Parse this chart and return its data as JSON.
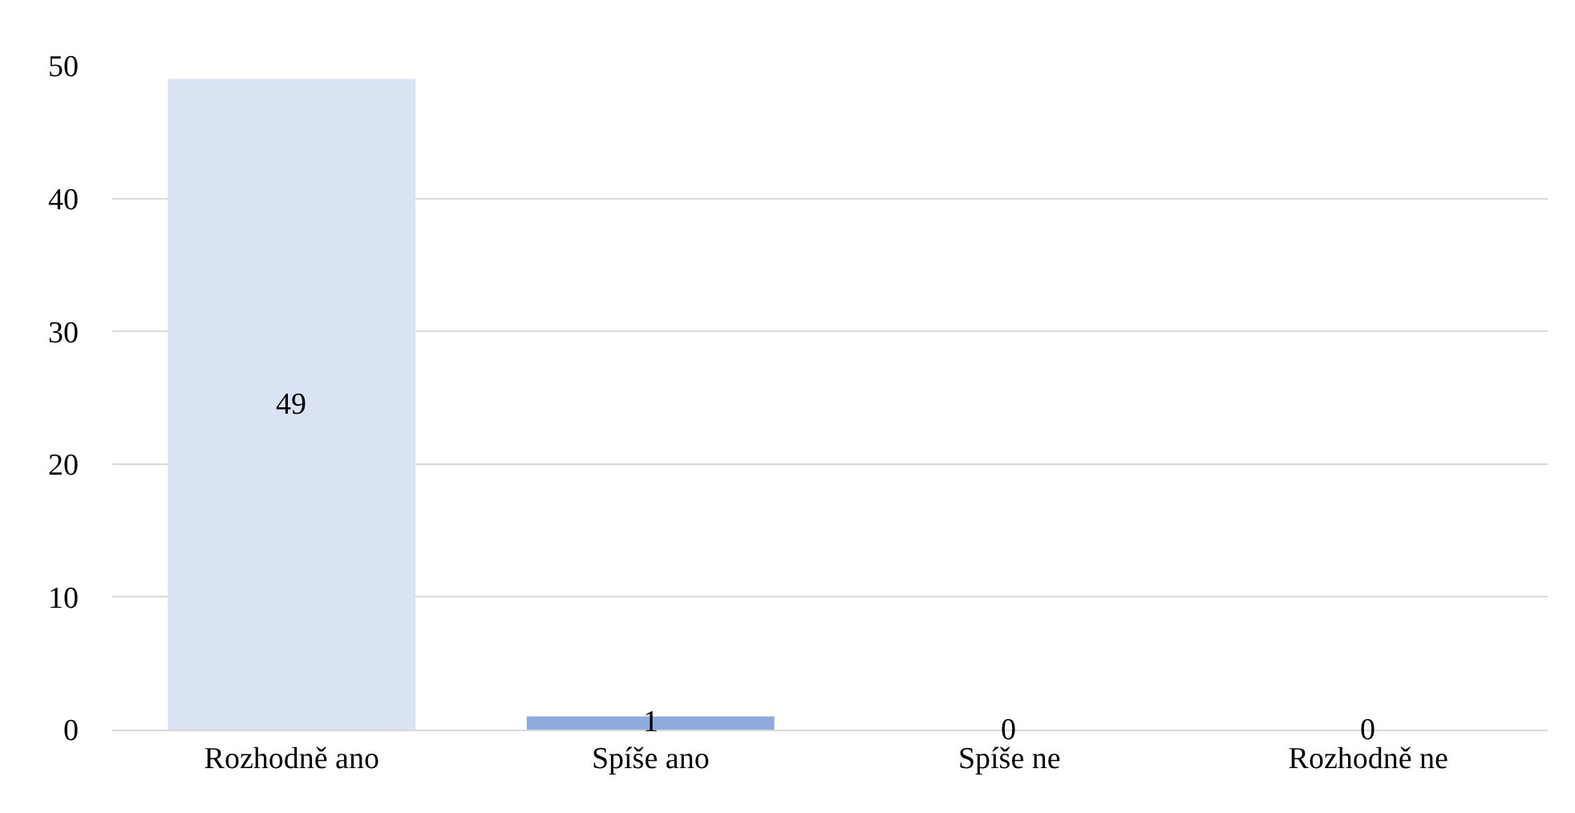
{
  "chart_data": {
    "type": "bar",
    "categories": [
      "Rozhodně ano",
      "Spíše ano",
      "Spíše ne",
      "Rozhodně ne"
    ],
    "values": [
      49,
      1,
      0,
      0
    ],
    "colors": [
      "#dae3f3",
      "#8faadc",
      "#8faadc",
      "#8faadc"
    ],
    "ylim": [
      0,
      50
    ],
    "yticks": [
      0,
      10,
      20,
      30,
      40,
      50
    ],
    "grid": "y",
    "data_labels": true
  }
}
